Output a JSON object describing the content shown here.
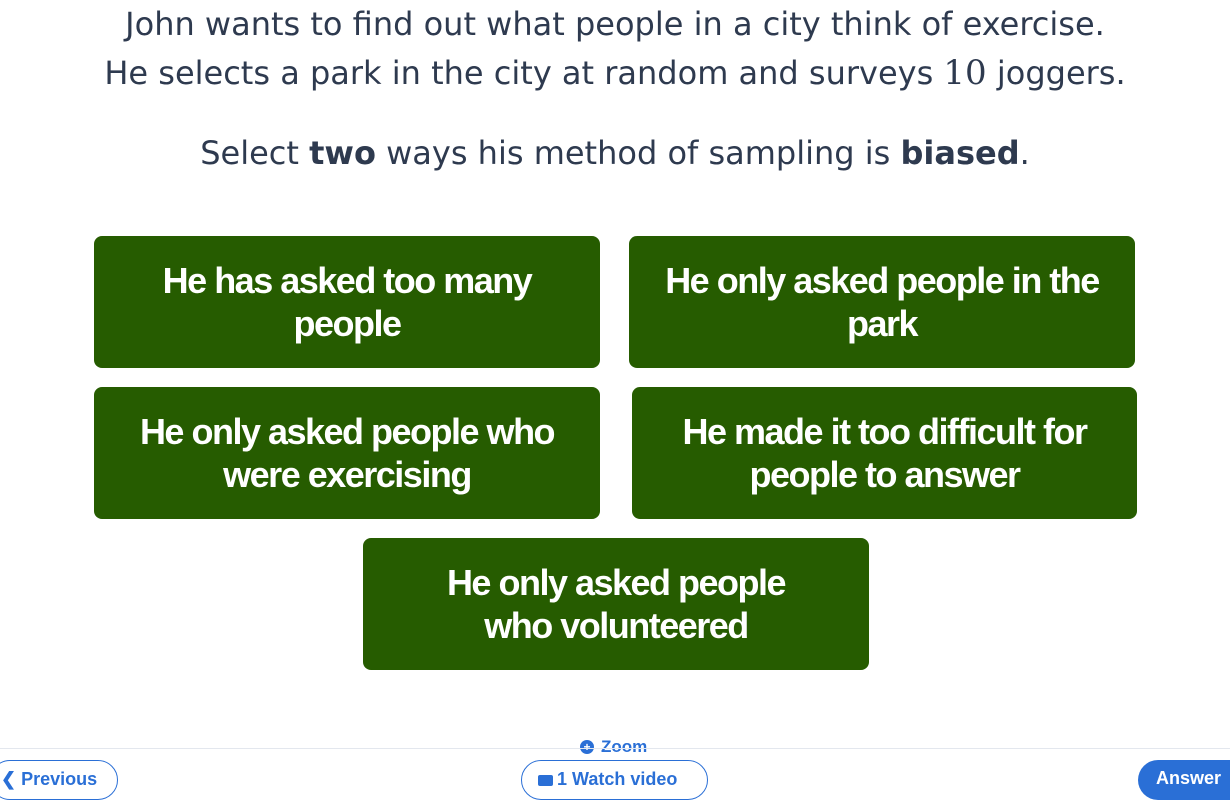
{
  "question": {
    "line1": "John wants to find out what people in a city think of exercise.",
    "line2_before": "He selects a park in the city at random and surveys ",
    "line2_number": "10",
    "line2_after": " joggers.",
    "instruction_before": "Select ",
    "instruction_bold1": "two",
    "instruction_middle": " ways his method of sampling is ",
    "instruction_bold2": "biased",
    "instruction_after": "."
  },
  "options": [
    {
      "line1": "He has asked too many people",
      "line2": ""
    },
    {
      "line1": "He only asked people in the park",
      "line2": ""
    },
    {
      "line1": "He only asked people who",
      "line2": "were exercising"
    },
    {
      "line1": "He made it too difficult for",
      "line2": "people to answer"
    },
    {
      "line1": "He only asked people",
      "line2": "who volunteered"
    }
  ],
  "option_color": "#265c00",
  "accent_color": "#2a6fd6",
  "zoom": {
    "label": "Zoom",
    "icon": "zoom-in-icon"
  },
  "footer": {
    "previous_label": "Previous",
    "previous_icon": "chevron-left-icon",
    "video_label": "1 Watch video",
    "video_icon": "video-icon",
    "answer_label": "Answer"
  }
}
